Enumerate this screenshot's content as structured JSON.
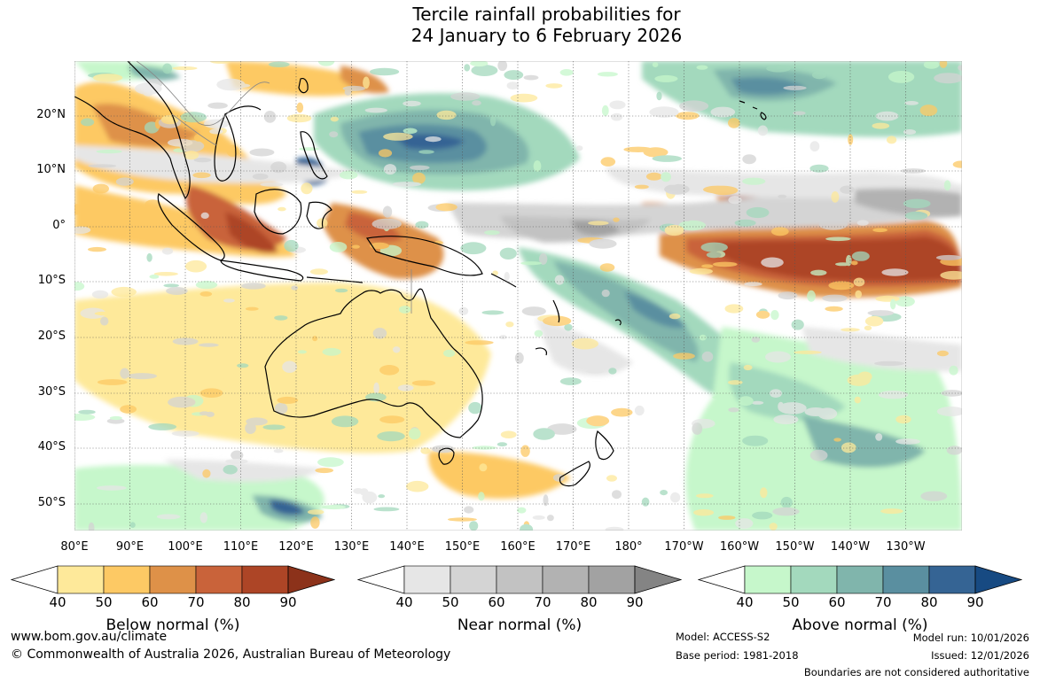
{
  "title": {
    "line1": "Tercile rainfall probabilities for",
    "line2": "24 January to 6 February 2026"
  },
  "map": {
    "lat_labels": [
      "20°N",
      "10°N",
      "0°",
      "10°S",
      "20°S",
      "30°S",
      "40°S",
      "50°S"
    ],
    "lon_labels": [
      "80°E",
      "90°E",
      "100°E",
      "110°E",
      "120°E",
      "130°E",
      "140°E",
      "150°E",
      "160°E",
      "170°E",
      "180°",
      "170°W",
      "160°W",
      "150°W",
      "140°W",
      "130°W"
    ]
  },
  "colorbars": [
    {
      "title": "Below normal (%)",
      "ticks": [
        "40",
        "50",
        "60",
        "70",
        "80",
        "90"
      ],
      "colors": [
        "#fee99a",
        "#fdc964",
        "#de9148",
        "#c9633a",
        "#ad4526",
        "#8c321a"
      ]
    },
    {
      "title": "Near normal (%)",
      "ticks": [
        "40",
        "50",
        "60",
        "70",
        "80",
        "90"
      ],
      "colors": [
        "#e6e6e6",
        "#d4d4d4",
        "#c2c2c2",
        "#b2b2b2",
        "#a2a2a2",
        "#848484"
      ]
    },
    {
      "title": "Above normal (%)",
      "ticks": [
        "40",
        "50",
        "60",
        "70",
        "80",
        "90"
      ],
      "colors": [
        "#c6f7cb",
        "#a3d9bd",
        "#80b5ac",
        "#5a8fa0",
        "#356494",
        "#174a82"
      ]
    }
  ],
  "footer": {
    "website": "www.bom.gov.au/climate",
    "copyright": "© Commonwealth of Australia 2026, Australian Bureau of Meteorology",
    "model": "Model: ACCESS-S2",
    "base_period": "Base period: 1981-2018",
    "model_run": "Model run: 10/01/2026",
    "issued": "Issued: 12/01/2026",
    "boundaries": "Boundaries are not considered authoritative"
  }
}
